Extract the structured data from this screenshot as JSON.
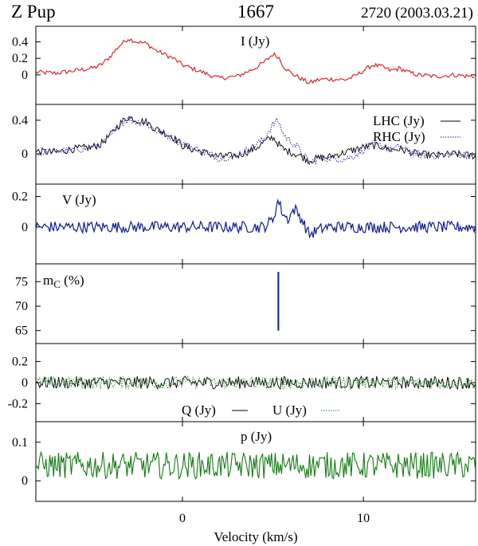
{
  "header": {
    "source": "Z Pup",
    "frequency": "1667",
    "epoch": "2720 (2003.03.21)"
  },
  "xaxis": {
    "label": "Velocity (km/s)",
    "range": [
      -8.1,
      16.2
    ],
    "ticks": [
      0,
      10
    ],
    "tick_labels": [
      "0",
      "10"
    ]
  },
  "colors": {
    "I": "#e8141c",
    "LHC": "#000000",
    "RHC": "#1a1a9a",
    "V": "#0d1a96",
    "mC": "#0d1a96",
    "Q": "#000000",
    "U": "#1d8a1d",
    "p": "#137a13"
  },
  "chart_data": [
    {
      "type": "line",
      "panel": "I",
      "label": "I (Jy)",
      "ylim": [
        -0.32,
        0.55
      ],
      "yticks": [
        0,
        0.2,
        0.4
      ],
      "ytick_labels": [
        "0",
        "0.2",
        "0.4"
      ],
      "series": [
        {
          "name": "I (Jy)",
          "x": [
            -8.0,
            -7.0,
            -6.0,
            -5.0,
            -4.5,
            -4.0,
            -3.5,
            -3.0,
            -2.5,
            -2.0,
            -1.5,
            -1.0,
            -0.5,
            0.0,
            0.5,
            1.0,
            1.5,
            2.0,
            3.0,
            4.0,
            4.5,
            5.0,
            5.3,
            5.6,
            6.0,
            6.5,
            7.0,
            7.5,
            8.0,
            9.0,
            9.5,
            10.0,
            10.5,
            11.0,
            11.5,
            12.0,
            12.5,
            13.0,
            14.0,
            15.0,
            16.0
          ],
          "values": [
            0.03,
            0.02,
            0.05,
            0.08,
            0.12,
            0.22,
            0.35,
            0.44,
            0.4,
            0.38,
            0.3,
            0.25,
            0.2,
            0.12,
            0.08,
            0.04,
            0.0,
            -0.04,
            -0.02,
            0.08,
            0.15,
            0.25,
            0.22,
            0.1,
            0.02,
            -0.04,
            -0.1,
            -0.06,
            -0.05,
            -0.06,
            -0.02,
            0.05,
            0.12,
            0.1,
            0.05,
            0.08,
            0.03,
            0.0,
            -0.02,
            0.0,
            -0.02
          ]
        }
      ]
    },
    {
      "type": "line",
      "panel": "LHC_RHC",
      "ylim": [
        -0.32,
        0.55
      ],
      "yticks": [
        0,
        0.4
      ],
      "ytick_labels": [
        "0",
        "0.4"
      ],
      "series": [
        {
          "name": "LHC (Jy)",
          "x": [
            -8.0,
            -7.0,
            -6.0,
            -5.0,
            -4.5,
            -4.0,
            -3.5,
            -3.0,
            -2.5,
            -2.0,
            -1.5,
            -1.0,
            -0.5,
            0.0,
            0.5,
            1.0,
            1.5,
            2.0,
            3.0,
            4.0,
            4.5,
            5.0,
            5.3,
            5.6,
            6.0,
            6.5,
            7.0,
            7.5,
            8.0,
            9.0,
            9.5,
            10.0,
            10.5,
            11.0,
            11.5,
            12.0,
            12.5,
            13.0,
            14.0,
            15.0,
            16.0
          ],
          "values": [
            0.03,
            0.02,
            0.06,
            0.08,
            0.12,
            0.22,
            0.35,
            0.44,
            0.4,
            0.38,
            0.3,
            0.25,
            0.2,
            0.1,
            0.06,
            0.03,
            0.0,
            -0.03,
            -0.02,
            0.06,
            0.14,
            0.2,
            0.12,
            0.05,
            0.02,
            -0.02,
            -0.08,
            -0.05,
            -0.04,
            0.02,
            0.05,
            0.08,
            0.1,
            0.09,
            0.05,
            0.06,
            0.03,
            0.0,
            -0.02,
            0.0,
            -0.02
          ]
        },
        {
          "name": "RHC (Jy)",
          "x": [
            -8.0,
            -7.0,
            -6.0,
            -5.0,
            -4.5,
            -4.0,
            -3.5,
            -3.0,
            -2.5,
            -2.0,
            -1.5,
            -1.0,
            -0.5,
            0.0,
            0.5,
            1.0,
            1.5,
            2.0,
            3.0,
            4.0,
            4.5,
            5.0,
            5.3,
            5.6,
            6.0,
            6.5,
            7.0,
            7.5,
            8.0,
            9.0,
            9.5,
            10.0,
            10.5,
            11.0,
            11.5,
            12.0,
            12.5,
            13.0,
            14.0,
            15.0,
            16.0
          ],
          "values": [
            0.02,
            0.03,
            0.05,
            0.07,
            0.12,
            0.2,
            0.34,
            0.42,
            0.38,
            0.36,
            0.28,
            0.24,
            0.18,
            0.12,
            0.08,
            0.04,
            0.0,
            -0.05,
            -0.02,
            0.1,
            0.18,
            0.35,
            0.4,
            0.22,
            0.15,
            0.05,
            -0.1,
            -0.06,
            -0.05,
            -0.06,
            -0.02,
            0.05,
            0.1,
            0.1,
            0.05,
            0.08,
            0.03,
            0.0,
            -0.02,
            0.0,
            -0.02
          ]
        }
      ]
    },
    {
      "type": "line",
      "panel": "V",
      "label": "V (Jy)",
      "ylim": [
        -0.22,
        0.26
      ],
      "yticks": [
        0,
        0.2
      ],
      "ytick_labels": [
        "0",
        "0.2"
      ],
      "series": [
        {
          "name": "V (Jy)",
          "x": [
            -8.0,
            0.0,
            4.5,
            5.0,
            5.3,
            5.5,
            5.8,
            6.2,
            6.6,
            7.0,
            7.5,
            8.0,
            16.0
          ],
          "values": [
            0.0,
            0.0,
            0.0,
            0.05,
            0.18,
            0.1,
            0.05,
            0.12,
            0.05,
            -0.05,
            -0.02,
            0.0,
            0.0
          ]
        }
      ]
    },
    {
      "type": "line",
      "panel": "mC",
      "ylim": [
        63,
        78
      ],
      "yticks": [
        65,
        70,
        75
      ],
      "ytick_labels": [
        "65",
        "70",
        "75"
      ],
      "series": [
        {
          "name": "m_C",
          "x": [
            5.3,
            5.3
          ],
          "values": [
            77,
            65
          ]
        }
      ]
    },
    {
      "type": "line",
      "panel": "Q_U",
      "ylim": [
        -0.34,
        0.34
      ],
      "yticks": [
        -0.2,
        0,
        0.2
      ],
      "ytick_labels": [
        "-0.2",
        "0",
        "0.2"
      ],
      "series": [
        {
          "name": "Q (Jy)",
          "x": [
            -8.0,
            16.0
          ],
          "values": [
            0.0,
            0.0
          ]
        },
        {
          "name": "U (Jy)",
          "x": [
            -8.0,
            16.0
          ],
          "values": [
            0.0,
            0.0
          ]
        }
      ]
    },
    {
      "type": "line",
      "panel": "p",
      "label": "p (Jy)",
      "ylim": [
        -0.045,
        0.145
      ],
      "yticks": [
        0,
        0.1
      ],
      "ytick_labels": [
        "0",
        "0.1"
      ],
      "series": [
        {
          "name": "p (Jy)",
          "x": [
            -8.0,
            16.0
          ],
          "values": [
            0.04,
            0.04
          ]
        }
      ]
    }
  ],
  "panel_labels": {
    "I": "I (Jy)",
    "LHC": "LHC (Jy)",
    "RHC": "RHC (Jy)",
    "V": "V (Jy)",
    "mC_main": "m",
    "mC_sub": "C",
    "mC_unit": " (%)",
    "Q": "Q (Jy)",
    "U": "U (Jy)",
    "p": "p (Jy)"
  }
}
